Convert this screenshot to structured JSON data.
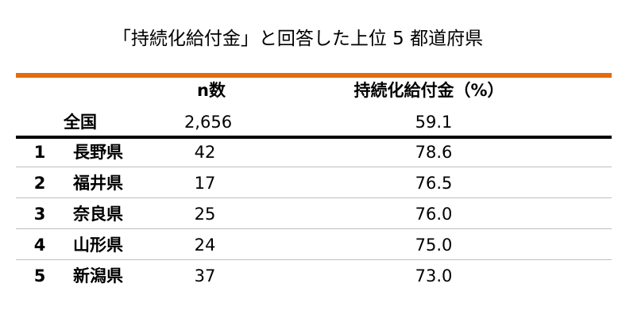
{
  "title": "「持続化給付金」と回答した上位 5 都道府県",
  "table": {
    "header": [
      "n数",
      "持続化給付金（%）"
    ],
    "total": {
      "label": "全国",
      "n": "2,656",
      "percent": "59.1"
    },
    "rows": [
      {
        "rank": "1",
        "prefecture": "長野県",
        "n": "42",
        "percent": "78.6"
      },
      {
        "rank": "2",
        "prefecture": "福井県",
        "n": "17",
        "percent": "76.5"
      },
      {
        "rank": "3",
        "prefecture": "奈良県",
        "n": "25",
        "percent": "76.0"
      },
      {
        "rank": "4",
        "prefecture": "山形県",
        "n": "24",
        "percent": "75.0"
      },
      {
        "rank": "5",
        "prefecture": "新潟県",
        "n": "37",
        "percent": "73.0"
      }
    ]
  }
}
